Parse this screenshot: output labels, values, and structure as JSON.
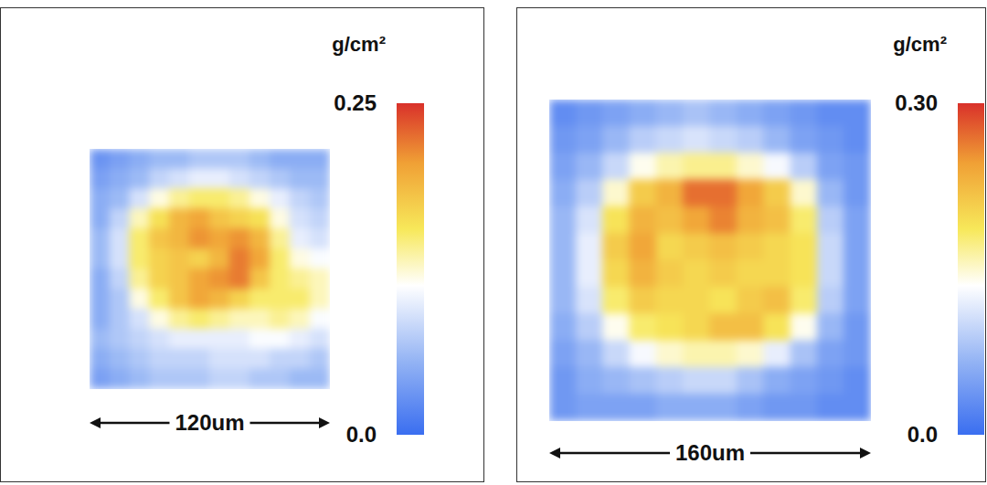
{
  "chart_data": [
    {
      "type": "heatmap",
      "colorbar_title": "g/cm²",
      "colorbar_range": [
        0,
        0.25
      ],
      "colorbar_ticks": [
        {
          "value": 0,
          "label": "0.0"
        },
        0.25
      ],
      "scale_bar": "120um",
      "tick_labels": false,
      "cells": [
        [
          0.03,
          0.04,
          0.05,
          0.06,
          0.06,
          0.07,
          0.07,
          0.07,
          0.06,
          0.05,
          0.05,
          0.05
        ],
        [
          0.04,
          0.05,
          0.06,
          0.08,
          0.09,
          0.1,
          0.1,
          0.09,
          0.08,
          0.07,
          0.06,
          0.06
        ],
        [
          0.05,
          0.06,
          0.09,
          0.12,
          0.14,
          0.15,
          0.15,
          0.14,
          0.12,
          0.1,
          0.08,
          0.07
        ],
        [
          0.05,
          0.08,
          0.13,
          0.16,
          0.19,
          0.2,
          0.18,
          0.17,
          0.16,
          0.12,
          0.09,
          0.08
        ],
        [
          0.06,
          0.09,
          0.15,
          0.18,
          0.19,
          0.21,
          0.2,
          0.21,
          0.19,
          0.14,
          0.1,
          0.09
        ],
        [
          0.06,
          0.09,
          0.15,
          0.17,
          0.18,
          0.17,
          0.19,
          0.22,
          0.2,
          0.15,
          0.12,
          0.11
        ],
        [
          0.05,
          0.08,
          0.14,
          0.17,
          0.18,
          0.2,
          0.21,
          0.22,
          0.18,
          0.15,
          0.14,
          0.13
        ],
        [
          0.05,
          0.07,
          0.12,
          0.15,
          0.18,
          0.2,
          0.19,
          0.17,
          0.15,
          0.15,
          0.15,
          0.13
        ],
        [
          0.05,
          0.07,
          0.09,
          0.12,
          0.14,
          0.15,
          0.14,
          0.13,
          0.13,
          0.14,
          0.13,
          0.11
        ],
        [
          0.06,
          0.07,
          0.08,
          0.09,
          0.1,
          0.1,
          0.1,
          0.1,
          0.11,
          0.11,
          0.1,
          0.09
        ],
        [
          0.05,
          0.06,
          0.07,
          0.08,
          0.08,
          0.08,
          0.09,
          0.09,
          0.09,
          0.08,
          0.08,
          0.07
        ],
        [
          0.04,
          0.05,
          0.06,
          0.07,
          0.07,
          0.07,
          0.08,
          0.08,
          0.07,
          0.07,
          0.06,
          0.06
        ]
      ]
    },
    {
      "type": "heatmap",
      "colorbar_title": "g/cm²",
      "colorbar_range": [
        0,
        0.3
      ],
      "colorbar_ticks": [
        {
          "value": 0,
          "label": "0.0"
        },
        {
          "value": 0.3,
          "label": "0.30"
        }
      ],
      "scale_bar": "160um",
      "tick_labels": false,
      "cells": [
        [
          0.03,
          0.04,
          0.05,
          0.06,
          0.07,
          0.08,
          0.07,
          0.06,
          0.05,
          0.04,
          0.03,
          0.03
        ],
        [
          0.04,
          0.05,
          0.07,
          0.09,
          0.1,
          0.11,
          0.1,
          0.09,
          0.07,
          0.05,
          0.04,
          0.03
        ],
        [
          0.05,
          0.07,
          0.1,
          0.14,
          0.16,
          0.17,
          0.17,
          0.15,
          0.13,
          0.09,
          0.05,
          0.04
        ],
        [
          0.06,
          0.09,
          0.15,
          0.21,
          0.23,
          0.27,
          0.27,
          0.24,
          0.21,
          0.15,
          0.07,
          0.04
        ],
        [
          0.07,
          0.11,
          0.19,
          0.23,
          0.22,
          0.24,
          0.26,
          0.23,
          0.22,
          0.18,
          0.09,
          0.05
        ],
        [
          0.07,
          0.12,
          0.21,
          0.24,
          0.2,
          0.21,
          0.22,
          0.21,
          0.2,
          0.19,
          0.1,
          0.05
        ],
        [
          0.07,
          0.12,
          0.2,
          0.23,
          0.21,
          0.2,
          0.21,
          0.2,
          0.2,
          0.19,
          0.1,
          0.05
        ],
        [
          0.07,
          0.11,
          0.18,
          0.21,
          0.2,
          0.2,
          0.19,
          0.21,
          0.22,
          0.18,
          0.09,
          0.05
        ],
        [
          0.06,
          0.09,
          0.14,
          0.18,
          0.19,
          0.2,
          0.22,
          0.22,
          0.19,
          0.14,
          0.07,
          0.04
        ],
        [
          0.05,
          0.07,
          0.1,
          0.13,
          0.15,
          0.16,
          0.16,
          0.15,
          0.12,
          0.08,
          0.05,
          0.04
        ],
        [
          0.04,
          0.06,
          0.07,
          0.08,
          0.09,
          0.1,
          0.1,
          0.08,
          0.06,
          0.05,
          0.04,
          0.03
        ],
        [
          0.04,
          0.05,
          0.05,
          0.05,
          0.06,
          0.06,
          0.06,
          0.05,
          0.04,
          0.04,
          0.03,
          0.03
        ]
      ]
    }
  ]
}
